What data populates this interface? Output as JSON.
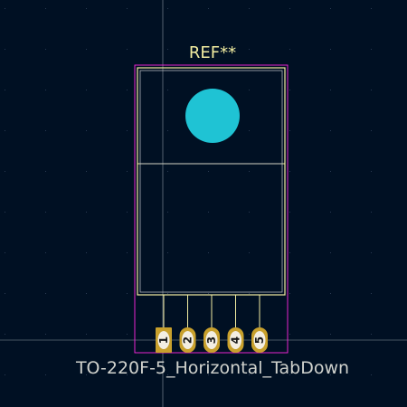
{
  "footprint": {
    "reference": "REF**",
    "value": "TO-220F-5_Horizontal_TabDown",
    "pads": [
      {
        "number": "1",
        "shape": "rect"
      },
      {
        "number": "2",
        "shape": "oval"
      },
      {
        "number": "3",
        "shape": "oval"
      },
      {
        "number": "4",
        "shape": "oval"
      },
      {
        "number": "5",
        "shape": "oval"
      }
    ]
  },
  "colors": {
    "background": "#001023",
    "grid": "#2a3a52",
    "silkscreen": "#f2eda1",
    "courtyard": "#ff26e2",
    "fab_text": "#d0d2cd",
    "pad_copper": "#c8a02c",
    "pad_text": "#1a1a1a",
    "mount_hole": "#1fc3d4",
    "crosshair": "#c8cfd8"
  }
}
